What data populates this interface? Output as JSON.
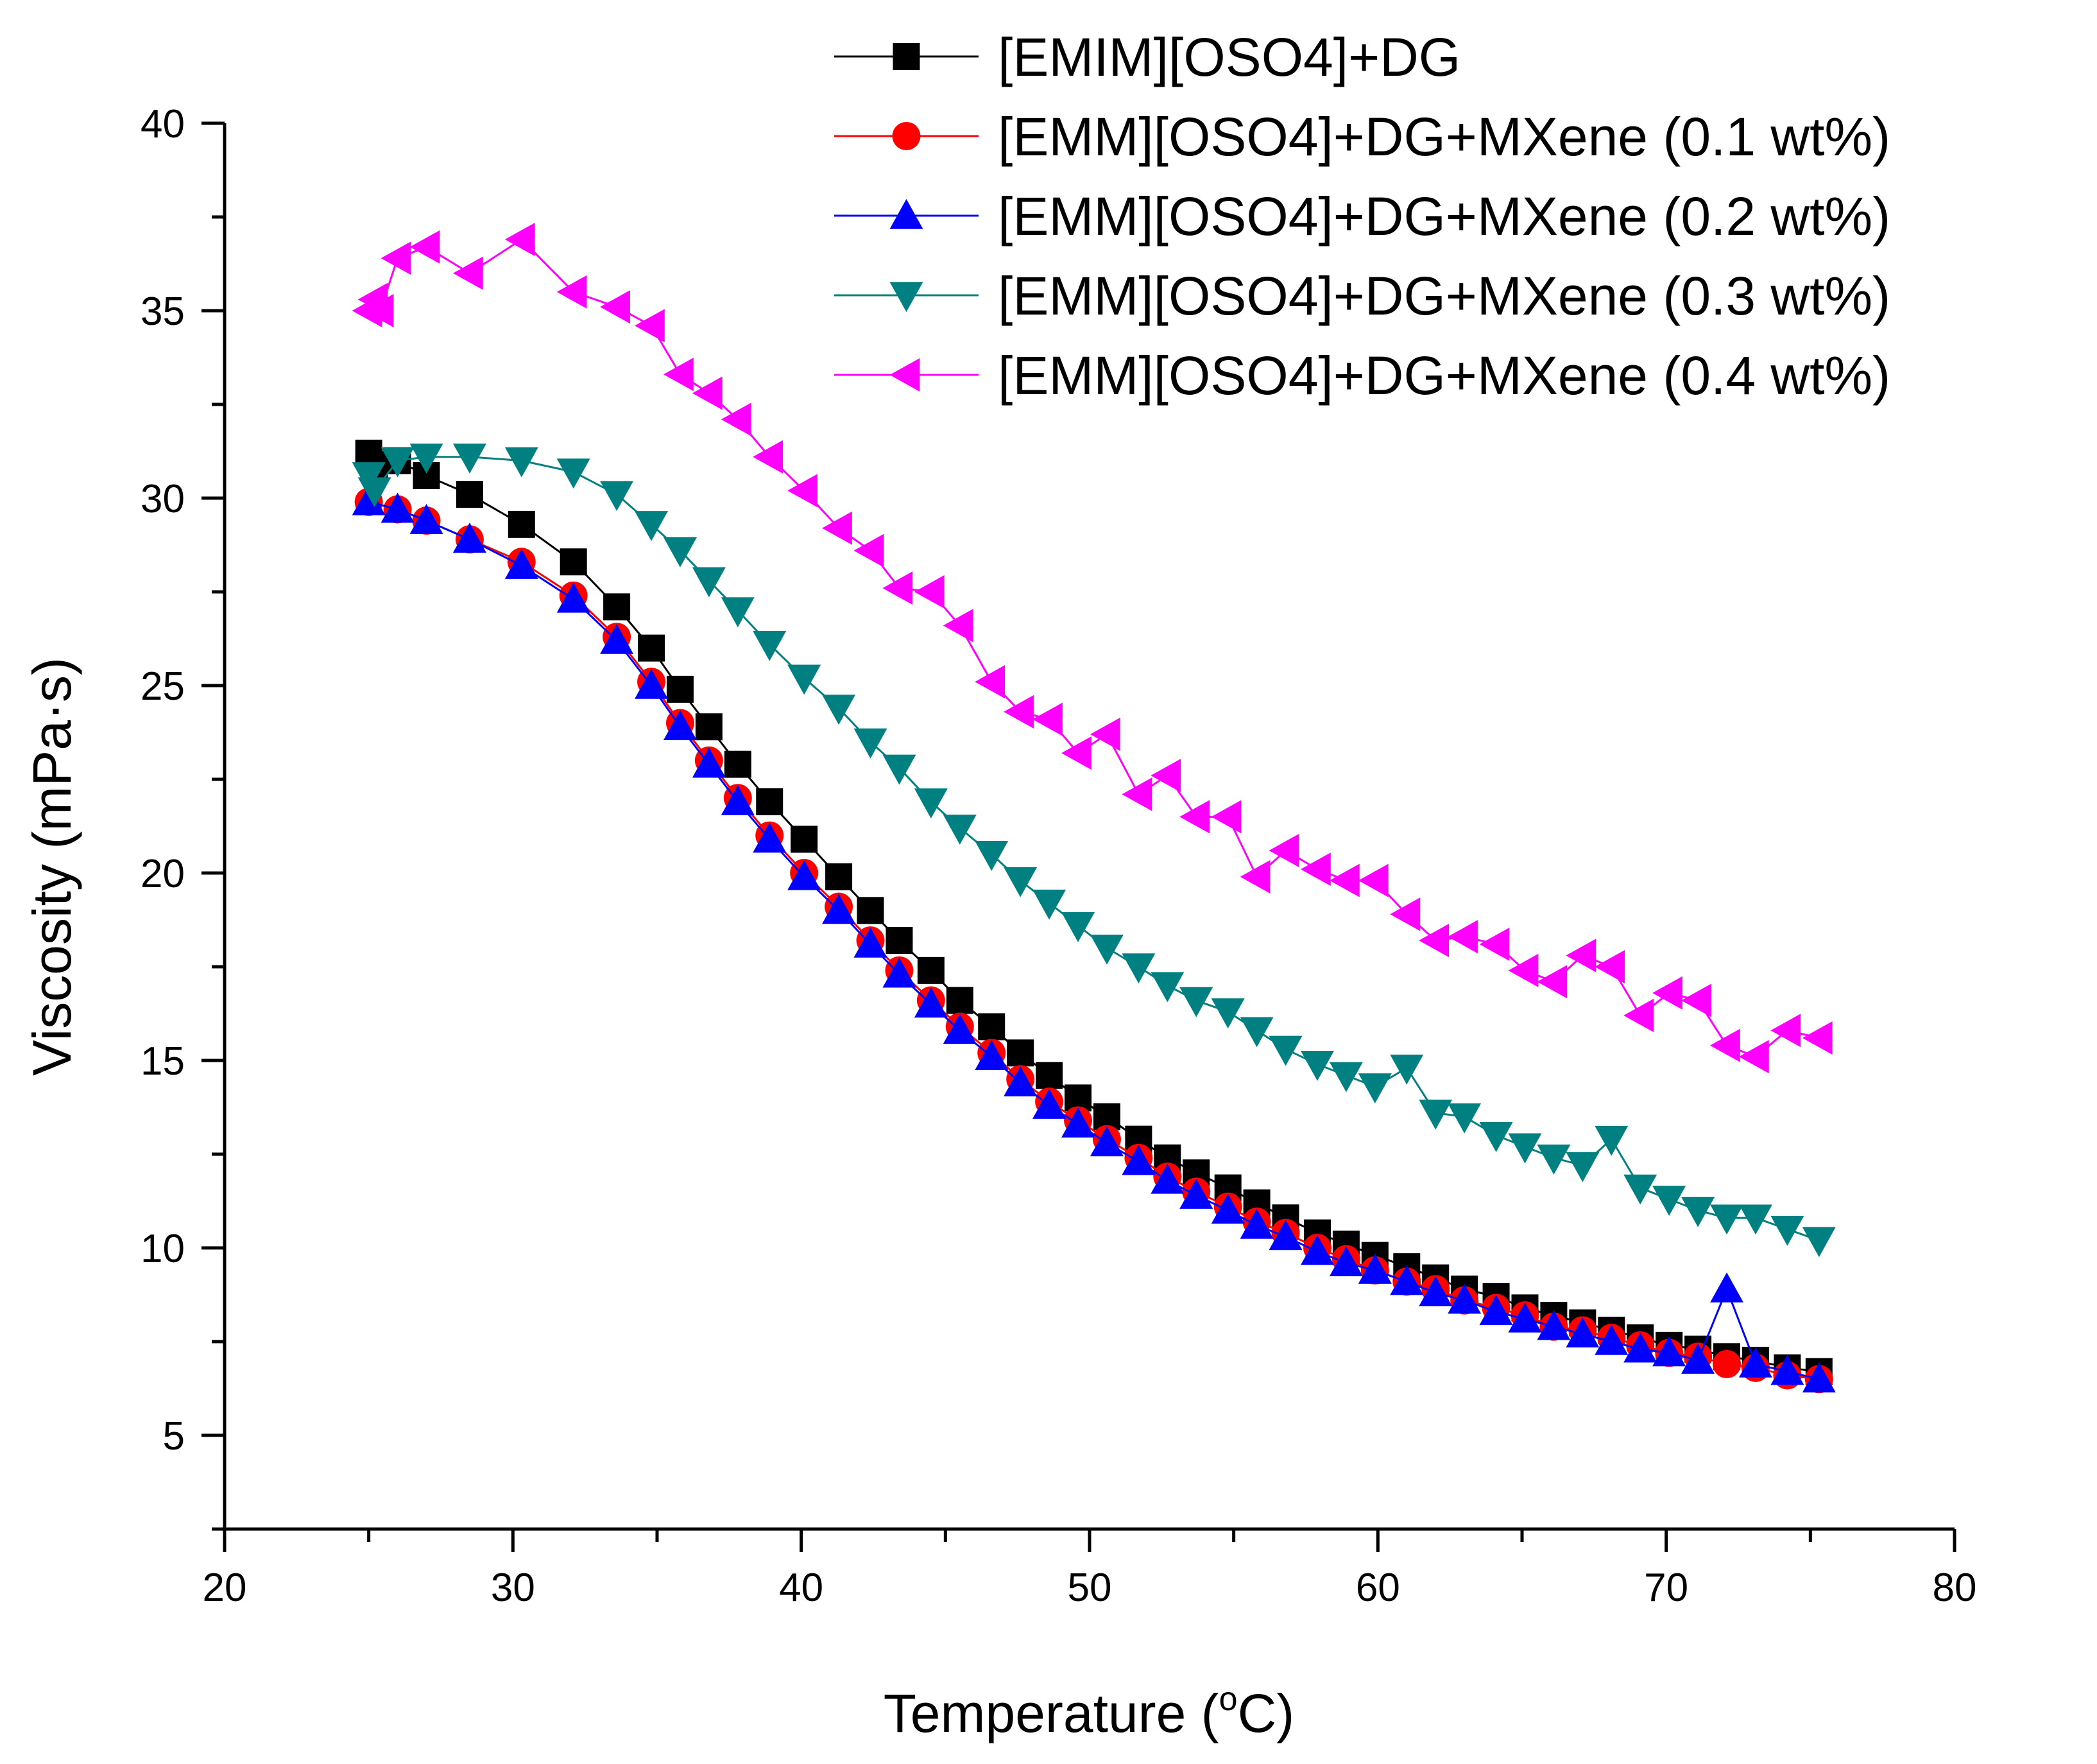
{
  "chart_data": {
    "type": "line",
    "xlabel": "Temperature (",
    "xlabel_sup": "o",
    "xlabel_unit": "C)",
    "ylabel": "Viscosity (mPa·s)",
    "xlim": [
      20,
      80
    ],
    "ylim": [
      2.5,
      40
    ],
    "xticks": [
      20,
      30,
      40,
      50,
      60,
      70,
      80
    ],
    "yticks": [
      5,
      10,
      15,
      20,
      25,
      30,
      35,
      40
    ],
    "grid": false,
    "legend_position": "top-right",
    "series": [
      {
        "name": "[EMIM][OSO4]+DG",
        "color": "#000000",
        "marker": "square",
        "x": [
          25.0,
          25.2,
          26.0,
          27.0,
          28.5,
          30.3,
          32.1,
          33.6,
          34.8,
          35.8,
          36.8,
          37.8,
          38.9,
          40.1,
          41.3,
          42.4,
          43.4,
          44.5,
          45.5,
          46.6,
          47.6,
          48.6,
          49.6,
          50.6,
          51.7,
          52.7,
          53.7,
          54.8,
          55.8,
          56.8,
          57.9,
          58.9,
          59.9,
          61.0,
          62.0,
          63.0,
          64.1,
          65.1,
          66.1,
          67.1,
          68.1,
          69.1,
          70.1,
          71.1,
          72.1,
          73.1,
          74.2,
          75.3
        ],
        "y": [
          31.2,
          30.9,
          31.0,
          30.6,
          30.1,
          29.3,
          28.3,
          27.1,
          26.0,
          24.9,
          23.9,
          22.9,
          21.9,
          20.9,
          19.9,
          19.0,
          18.2,
          17.4,
          16.6,
          15.9,
          15.2,
          14.6,
          14.0,
          13.5,
          12.9,
          12.4,
          12.0,
          11.6,
          11.2,
          10.8,
          10.4,
          10.1,
          9.8,
          9.5,
          9.2,
          8.9,
          8.7,
          8.4,
          8.2,
          8.0,
          7.8,
          7.6,
          7.4,
          7.3,
          7.1,
          7.0,
          6.8,
          6.7
        ]
      },
      {
        "name": "[EMM][OSO4]+DG+MXene (0.1 wt%)",
        "color": "#ff0000",
        "marker": "circle",
        "x": [
          25.0,
          26.0,
          27.0,
          28.5,
          30.3,
          32.1,
          33.6,
          34.8,
          35.8,
          36.8,
          37.8,
          38.9,
          40.1,
          41.3,
          42.4,
          43.4,
          44.5,
          45.5,
          46.6,
          47.6,
          48.6,
          49.6,
          50.6,
          51.7,
          52.7,
          53.7,
          54.8,
          55.8,
          56.8,
          57.9,
          58.9,
          59.9,
          61.0,
          62.0,
          63.0,
          64.1,
          65.1,
          66.1,
          67.1,
          68.1,
          69.1,
          70.1,
          71.1,
          72.1,
          73.1,
          74.2,
          75.3
        ],
        "y": [
          29.9,
          29.7,
          29.4,
          28.9,
          28.3,
          27.4,
          26.3,
          25.1,
          24.0,
          23.0,
          22.0,
          21.0,
          20.0,
          19.1,
          18.2,
          17.4,
          16.6,
          15.9,
          15.2,
          14.5,
          13.9,
          13.4,
          12.9,
          12.4,
          11.9,
          11.5,
          11.1,
          10.7,
          10.4,
          10.0,
          9.7,
          9.4,
          9.1,
          8.9,
          8.6,
          8.4,
          8.2,
          7.9,
          7.8,
          7.6,
          7.4,
          7.2,
          7.1,
          6.9,
          6.8,
          6.6,
          6.5
        ]
      },
      {
        "name": "[EMM][OSO4]+DG+MXene (0.2 wt%)",
        "color": "#0000ff",
        "marker": "triangle-up",
        "x": [
          25.0,
          26.0,
          27.0,
          28.5,
          30.3,
          32.1,
          33.6,
          34.8,
          35.8,
          36.8,
          37.8,
          38.9,
          40.1,
          41.3,
          42.4,
          43.4,
          44.5,
          45.5,
          46.6,
          47.6,
          48.6,
          49.6,
          50.6,
          51.7,
          52.7,
          53.7,
          54.8,
          55.8,
          56.8,
          57.9,
          58.9,
          59.9,
          61.0,
          62.0,
          63.0,
          64.1,
          65.1,
          66.1,
          67.1,
          68.1,
          69.1,
          70.1,
          71.1,
          72.1,
          73.1,
          74.2,
          75.3
        ],
        "y": [
          29.9,
          29.7,
          29.4,
          28.9,
          28.2,
          27.3,
          26.2,
          25.0,
          23.9,
          22.9,
          21.9,
          20.9,
          19.9,
          19.0,
          18.1,
          17.3,
          16.5,
          15.8,
          15.1,
          14.4,
          13.8,
          13.3,
          12.8,
          12.3,
          11.8,
          11.4,
          11.0,
          10.6,
          10.3,
          9.9,
          9.6,
          9.4,
          9.1,
          8.8,
          8.6,
          8.3,
          8.1,
          7.9,
          7.7,
          7.5,
          7.3,
          7.2,
          7.0,
          8.9,
          6.9,
          6.7,
          6.5
        ]
      },
      {
        "name": "[EMM][OSO4]+DG+MXene (0.3 wt%)",
        "color": "#008080",
        "marker": "triangle-down",
        "x": [
          25.0,
          25.2,
          26.0,
          27.0,
          28.5,
          30.3,
          32.1,
          33.6,
          34.8,
          35.8,
          36.8,
          37.8,
          38.9,
          40.1,
          41.3,
          42.4,
          43.4,
          44.5,
          45.5,
          46.6,
          47.6,
          48.6,
          49.6,
          50.6,
          51.7,
          52.7,
          53.7,
          54.8,
          55.8,
          56.8,
          57.9,
          58.9,
          59.9,
          61.0,
          62.0,
          63.0,
          64.1,
          65.1,
          66.1,
          67.1,
          68.1,
          69.1,
          70.1,
          71.1,
          72.1,
          73.1,
          74.2,
          75.3
        ],
        "y": [
          30.6,
          30.2,
          31.0,
          31.1,
          31.1,
          31.0,
          30.7,
          30.1,
          29.3,
          28.6,
          27.8,
          27.0,
          26.1,
          25.2,
          24.4,
          23.5,
          22.8,
          21.9,
          21.2,
          20.5,
          19.8,
          19.2,
          18.6,
          18.0,
          17.5,
          17.0,
          16.6,
          16.3,
          15.8,
          15.3,
          14.9,
          14.6,
          14.3,
          14.8,
          13.6,
          13.5,
          13.0,
          12.7,
          12.4,
          12.2,
          12.9,
          11.6,
          11.3,
          11.0,
          10.8,
          10.8,
          10.5,
          10.2
        ]
      },
      {
        "name": "[EMM][OSO4]+DG+MXene (0.4 wt%)",
        "color": "#ff00ff",
        "marker": "triangle-left",
        "x": [
          25.0,
          25.2,
          25.4,
          26.0,
          27.0,
          28.5,
          30.3,
          32.1,
          33.6,
          34.8,
          35.8,
          36.8,
          37.8,
          38.9,
          40.1,
          41.3,
          42.4,
          43.4,
          44.5,
          45.5,
          46.6,
          47.6,
          48.6,
          49.6,
          50.6,
          51.7,
          52.7,
          53.7,
          54.8,
          55.8,
          56.8,
          57.9,
          58.9,
          59.9,
          61.0,
          62.0,
          63.0,
          64.1,
          65.1,
          66.1,
          67.1,
          68.1,
          69.1,
          70.1,
          71.1,
          72.1,
          73.1,
          74.2,
          75.3
        ],
        "y": [
          35.0,
          35.3,
          35.0,
          36.4,
          36.7,
          36.0,
          36.9,
          35.5,
          35.1,
          34.6,
          33.3,
          32.8,
          32.1,
          31.1,
          30.2,
          29.2,
          28.6,
          27.6,
          27.5,
          26.6,
          25.1,
          24.3,
          24.1,
          23.2,
          23.7,
          22.1,
          22.6,
          21.5,
          21.5,
          19.9,
          20.6,
          20.1,
          19.8,
          19.8,
          18.9,
          18.2,
          18.3,
          18.1,
          17.4,
          17.1,
          17.8,
          17.5,
          16.2,
          16.8,
          16.6,
          15.4,
          15.1,
          15.8,
          15.6
        ]
      }
    ]
  }
}
